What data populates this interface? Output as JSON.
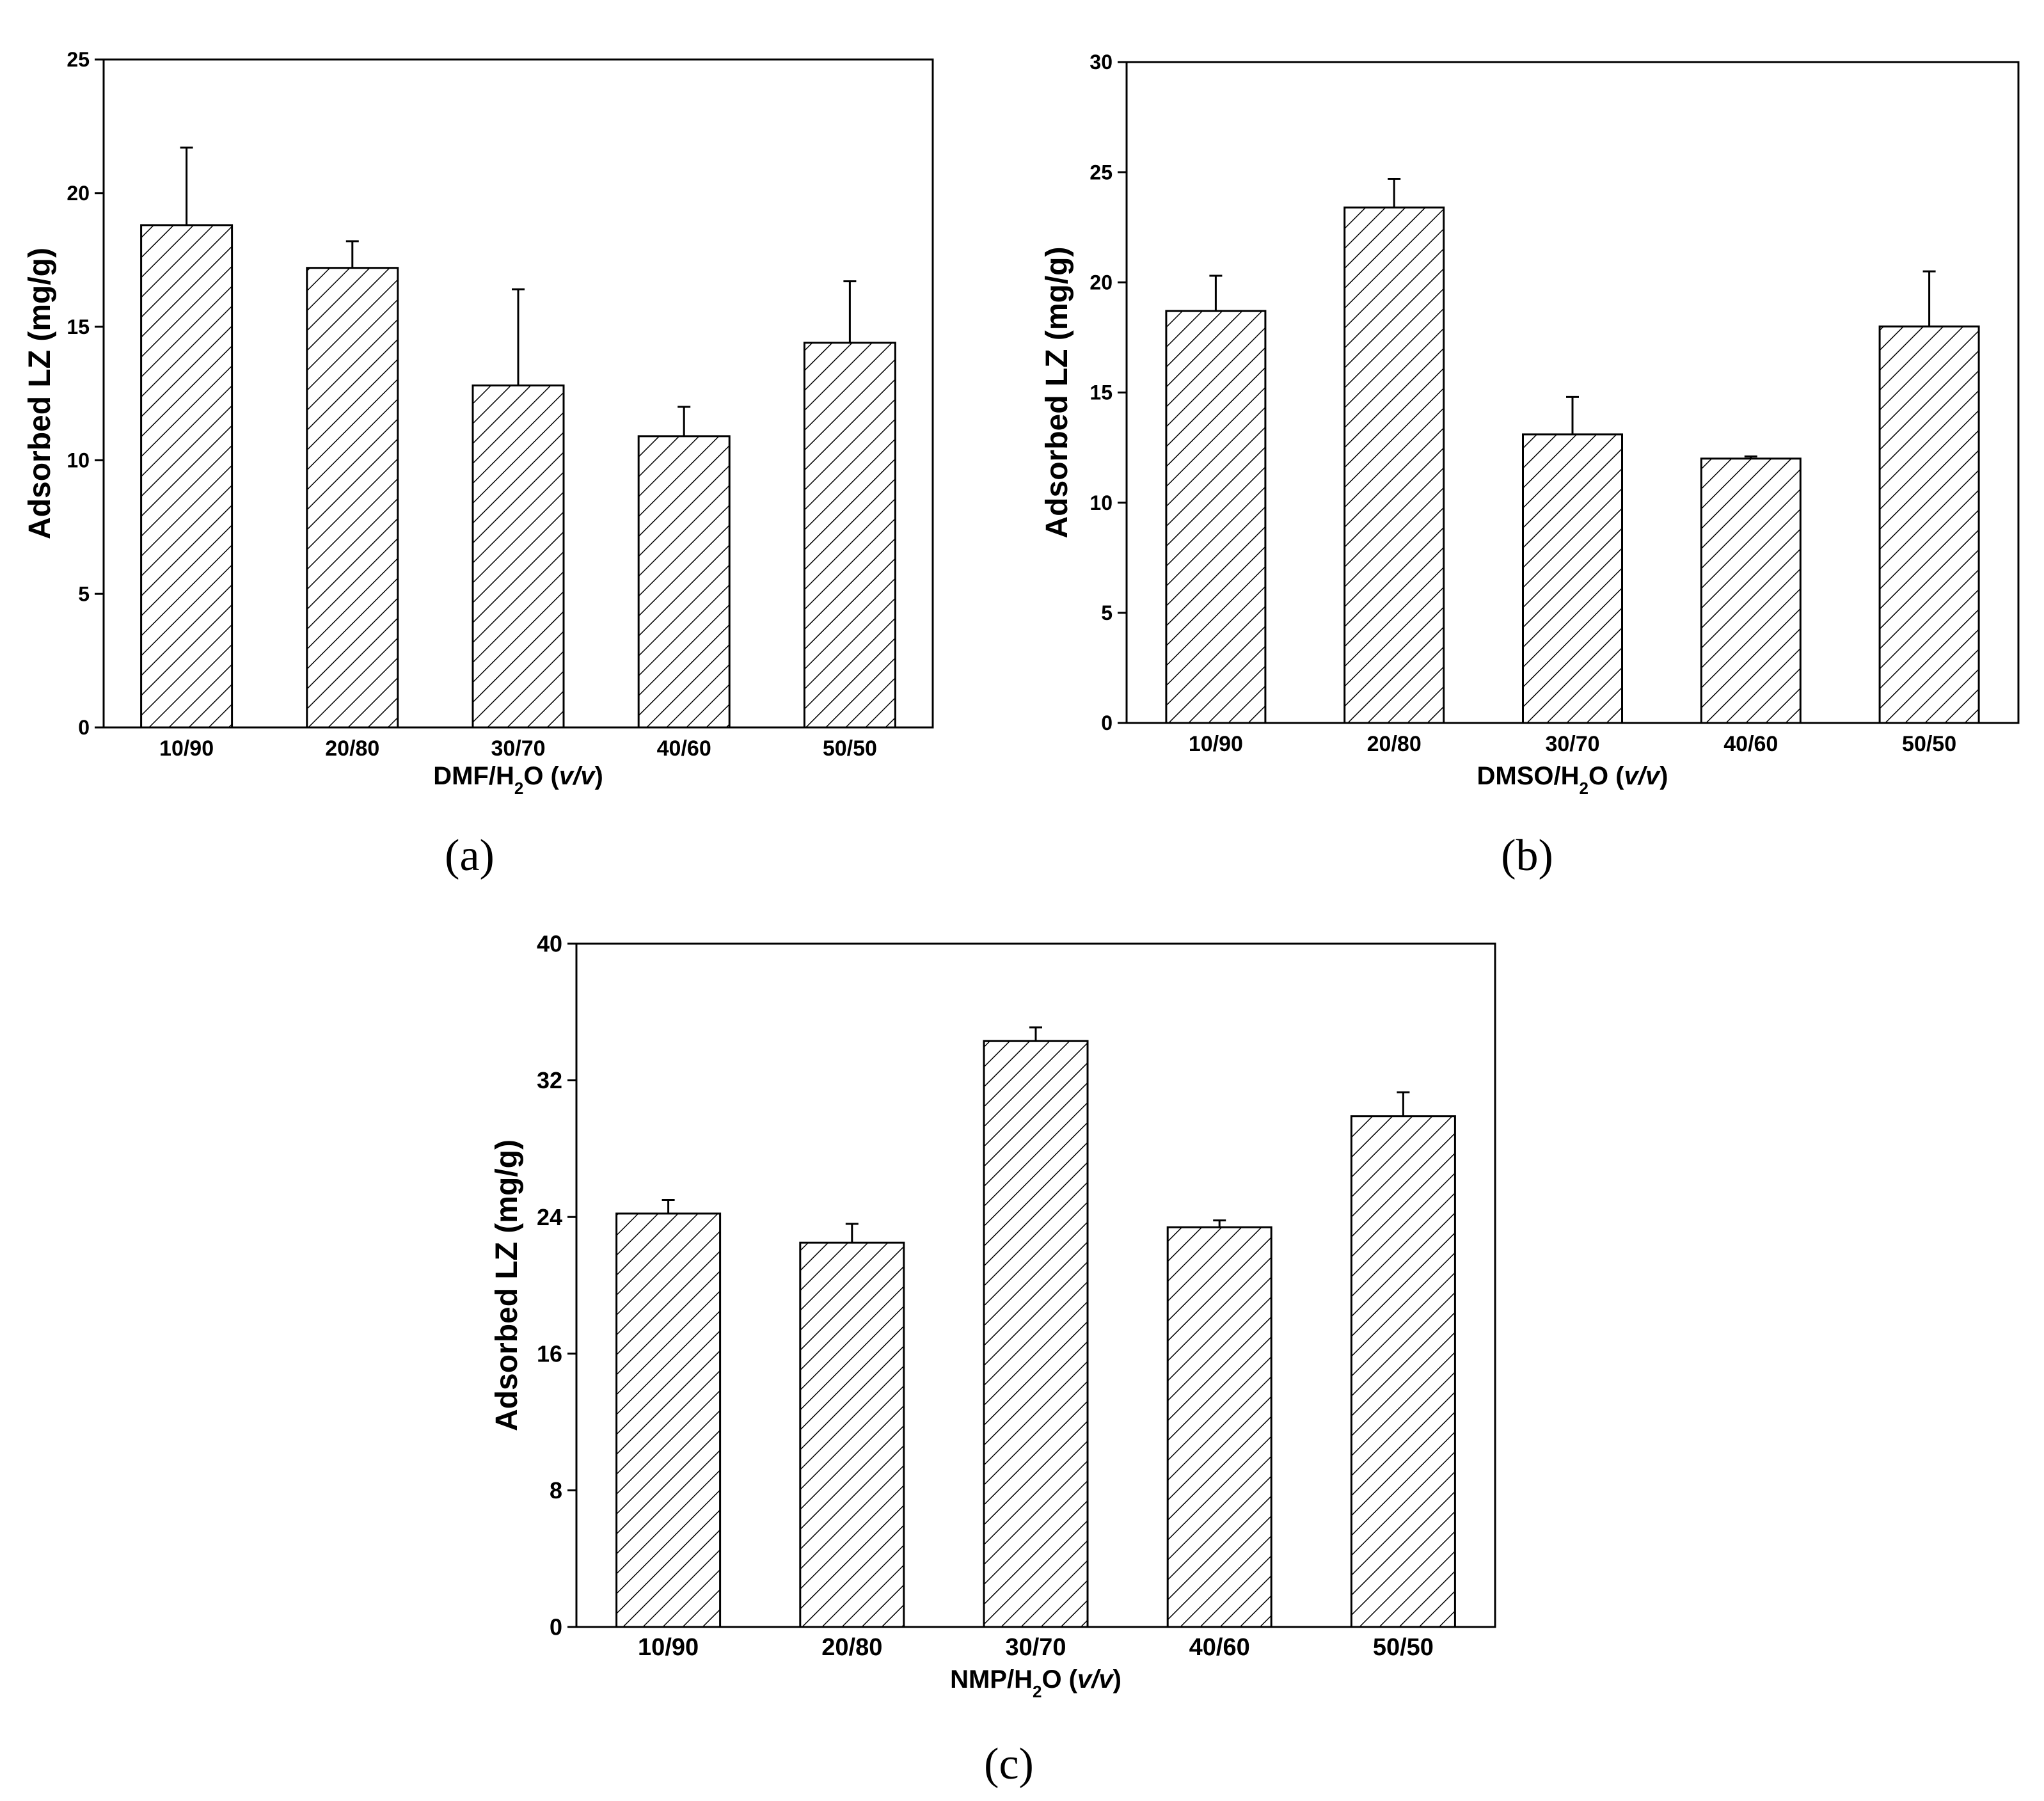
{
  "chart_data": [
    {
      "panel": "(a)",
      "type": "bar",
      "ylabel": "Adsorbed LZ (mg/g)",
      "xlabel_prefix": "DMF/H",
      "xlabel_sub": "2",
      "xlabel_mid": "O  (",
      "xlabel_unit": "v/v",
      "xlabel_suffix": ")",
      "ylim": [
        0,
        25
      ],
      "yticks": [
        0,
        5,
        10,
        15,
        20,
        25
      ],
      "categories": [
        "10/90",
        "20/80",
        "30/70",
        "40/60",
        "50/50"
      ],
      "values": [
        18.8,
        17.2,
        12.8,
        10.9,
        14.4
      ],
      "errors": [
        2.9,
        1.0,
        3.6,
        1.1,
        2.3
      ]
    },
    {
      "panel": "(b)",
      "type": "bar",
      "ylabel": "Adsorbed LZ (mg/g)",
      "xlabel_prefix": "DMSO/H",
      "xlabel_sub": "2",
      "xlabel_mid": "O  (",
      "xlabel_unit": "v/v",
      "xlabel_suffix": ")",
      "ylim": [
        0,
        30
      ],
      "yticks": [
        0,
        5,
        10,
        15,
        20,
        25,
        30
      ],
      "categories": [
        "10/90",
        "20/80",
        "30/70",
        "40/60",
        "50/50"
      ],
      "values": [
        18.7,
        23.4,
        13.1,
        12.0,
        18.0
      ],
      "errors": [
        1.6,
        1.3,
        1.7,
        0.1,
        2.5
      ]
    },
    {
      "panel": "(c)",
      "type": "bar",
      "ylabel": "Adsorbed LZ (mg/g)",
      "xlabel_prefix": "NMP/H",
      "xlabel_sub": "2",
      "xlabel_mid": "O  (",
      "xlabel_unit": "v/v",
      "xlabel_suffix": ")",
      "ylim": [
        0,
        40
      ],
      "yticks": [
        0,
        8,
        16,
        24,
        32,
        40
      ],
      "categories": [
        "10/90",
        "20/80",
        "30/70",
        "40/60",
        "50/50"
      ],
      "values": [
        24.2,
        22.5,
        34.3,
        23.4,
        29.9
      ],
      "errors": [
        0.8,
        1.1,
        0.8,
        0.4,
        1.4
      ]
    }
  ]
}
